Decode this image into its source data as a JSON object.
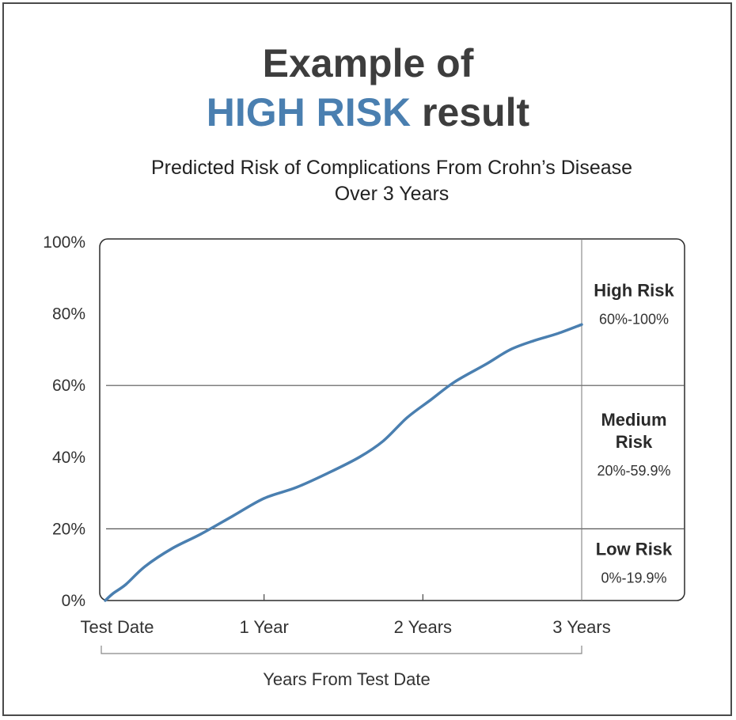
{
  "title": {
    "line1": "Example of",
    "highlight": "HIGH RISK",
    "rest": "result"
  },
  "colors": {
    "accent": "#4a7fb0",
    "line": "#4a7fb0",
    "text": "#3d3d3d"
  },
  "chart_data": {
    "type": "line",
    "title": "Predicted Risk of Complications From Crohn’s Disease Over 3 Years",
    "title_lines": [
      "Predicted Risk of Complications From Crohn’s Disease",
      "Over 3 Years"
    ],
    "xlabel": "Years From Test Date",
    "ylabel": "",
    "xlim": [
      0,
      3
    ],
    "ylim": [
      0,
      100
    ],
    "x_ticks": [
      {
        "value": 0,
        "label": "Test Date"
      },
      {
        "value": 1,
        "label": "1 Year"
      },
      {
        "value": 2,
        "label": "2 Years"
      },
      {
        "value": 3,
        "label": "3 Years"
      }
    ],
    "y_ticks": [
      {
        "value": 0,
        "label": "0%"
      },
      {
        "value": 20,
        "label": "20%"
      },
      {
        "value": 40,
        "label": "40%"
      },
      {
        "value": 60,
        "label": "60%"
      },
      {
        "value": 80,
        "label": "80%"
      },
      {
        "value": 100,
        "label": "100%"
      }
    ],
    "thresholds": [
      20,
      60
    ],
    "zones": [
      {
        "name": "High Risk",
        "name_lines": [
          "High Risk"
        ],
        "range": "60%-100%",
        "from": 60,
        "to": 100
      },
      {
        "name": "Medium Risk",
        "name_lines": [
          "Medium",
          "Risk"
        ],
        "range": "20%-59.9%",
        "from": 20,
        "to": 59.9
      },
      {
        "name": "Low Risk",
        "name_lines": [
          "Low Risk"
        ],
        "range": "0%-19.9%",
        "from": 0,
        "to": 19.9
      }
    ],
    "series": [
      {
        "name": "Predicted risk",
        "x": [
          0,
          0.05,
          0.13,
          0.25,
          0.42,
          0.6,
          0.8,
          1.0,
          1.2,
          1.4,
          1.6,
          1.75,
          1.9,
          2.05,
          2.2,
          2.4,
          2.55,
          2.7,
          2.85,
          3.0
        ],
        "y": [
          0,
          2,
          4.5,
          9.5,
          14.5,
          18.5,
          23.5,
          28.5,
          31.5,
          35.5,
          40,
          44.5,
          51,
          56,
          61,
          66,
          70,
          72.5,
          74.5,
          77
        ]
      }
    ]
  }
}
